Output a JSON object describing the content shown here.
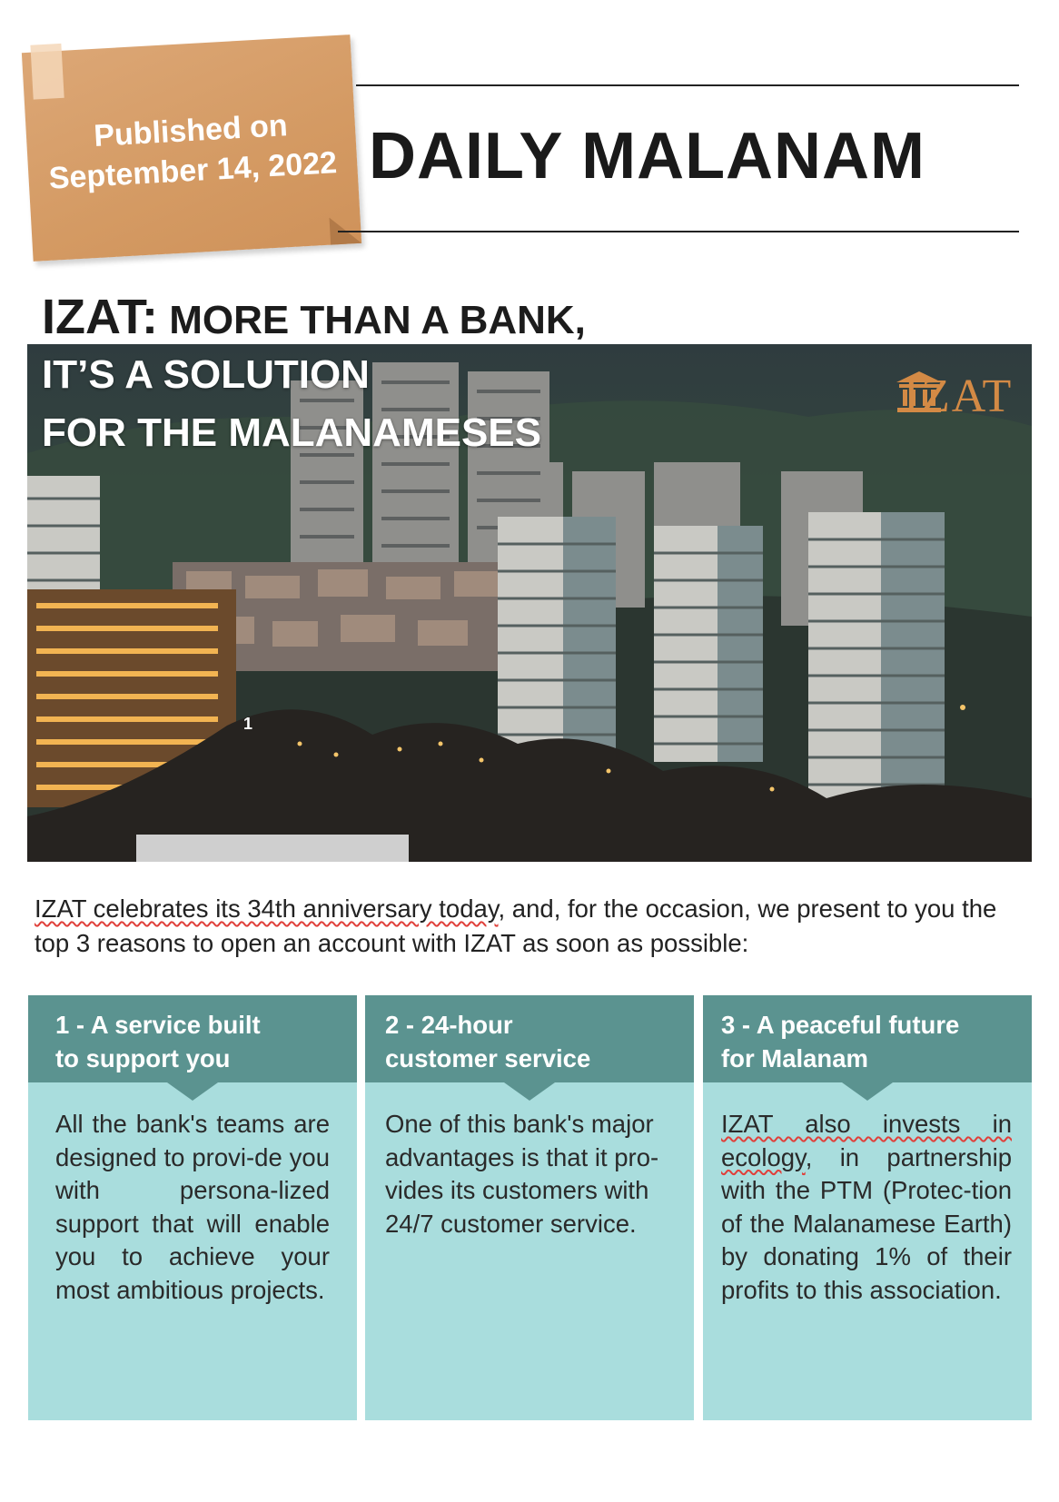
{
  "note": {
    "published_line1": "Published on",
    "published_line2": "September 14, 2022"
  },
  "masthead": {
    "title": "DAILY MALANAM"
  },
  "headline": {
    "brand": "IZAT:",
    "line1_rest": " MORE THAN A BANK,",
    "line2": "IT’S A SOLUTION",
    "line3": "FOR THE MALANAMESES"
  },
  "hero": {
    "logo_text": "IZAT",
    "marker": "1",
    "logo_icon": "bank-building-icon"
  },
  "intro": {
    "underlined": "IZAT celebrates its 34th anniversary today",
    "rest": ", and, for the occasion, we present to you the top 3 reasons to open an account with IZAT as soon as possible:"
  },
  "cards": [
    {
      "title_line1": "1 - A service built",
      "title_line2": "to support you",
      "body": "All the bank's teams are designed to provi-de you with persona-lized support that will enable you to achieve your most ambitious projects."
    },
    {
      "title_line1": "2 - 24-hour",
      "title_line2": "customer service",
      "body": "One of this bank's major advantages is that it pro-vides its customers with 24/7 customer service."
    },
    {
      "title_line1": "3 - A peaceful future",
      "title_line2": "for Malanam",
      "body_underlined": "IZAT also invests in ecology",
      "body_rest": ", in partnership with the PTM (Protec-tion of the Malanamese Earth) by donating 1% of their profits to this association."
    }
  ],
  "colors": {
    "note": "#d49a63",
    "card_header": "#5b9390",
    "card_body": "#a9dddd",
    "logo": "#d38a45",
    "underline": "#e0403a"
  }
}
